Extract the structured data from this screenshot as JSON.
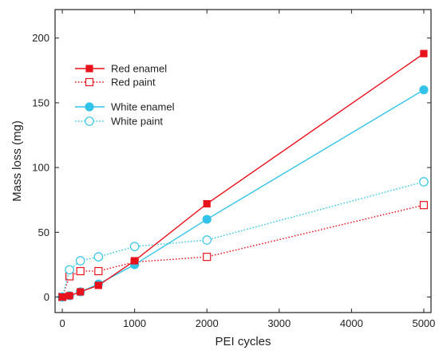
{
  "chart_data": {
    "type": "line",
    "title": "",
    "xlabel": "PEI cycles",
    "ylabel": "Mass loss (mg)",
    "xlim": [
      -100,
      5100
    ],
    "ylim": [
      -12,
      222
    ],
    "xticks": [
      0,
      1000,
      2000,
      3000,
      4000,
      5000
    ],
    "yticks": [
      0,
      50,
      100,
      150,
      200
    ],
    "xtick_labels": [
      "0",
      "1000",
      "2000",
      "3000",
      "4000",
      "5000"
    ],
    "ytick_labels": [
      "0",
      "50",
      "100",
      "150",
      "200"
    ],
    "grid": false,
    "legend_position": "top-left",
    "series": [
      {
        "name": "Red enamel",
        "color": "#e8121c",
        "line": "solid",
        "marker": "filled-square",
        "x": [
          0,
          100,
          250,
          500,
          1000,
          2000,
          5000
        ],
        "y": [
          0,
          1,
          4,
          9,
          28,
          72,
          188
        ]
      },
      {
        "name": "Red paint",
        "color": "#e8121c",
        "line": "dotted",
        "marker": "open-square",
        "x": [
          0,
          100,
          250,
          500,
          1000,
          2000,
          5000
        ],
        "y": [
          0,
          16,
          20,
          20,
          27,
          31,
          71
        ]
      },
      {
        "name": "White enamel",
        "color": "#33c3ea",
        "line": "solid",
        "marker": "filled-circle",
        "x": [
          0,
          100,
          250,
          500,
          1000,
          2000,
          5000
        ],
        "y": [
          0,
          1,
          4,
          10,
          25,
          60,
          160
        ]
      },
      {
        "name": "White paint",
        "color": "#33c3ea",
        "line": "dotted",
        "marker": "open-circle",
        "x": [
          0,
          100,
          250,
          500,
          1000,
          2000,
          5000
        ],
        "y": [
          0,
          21,
          28,
          31,
          39,
          44,
          89
        ]
      }
    ]
  }
}
